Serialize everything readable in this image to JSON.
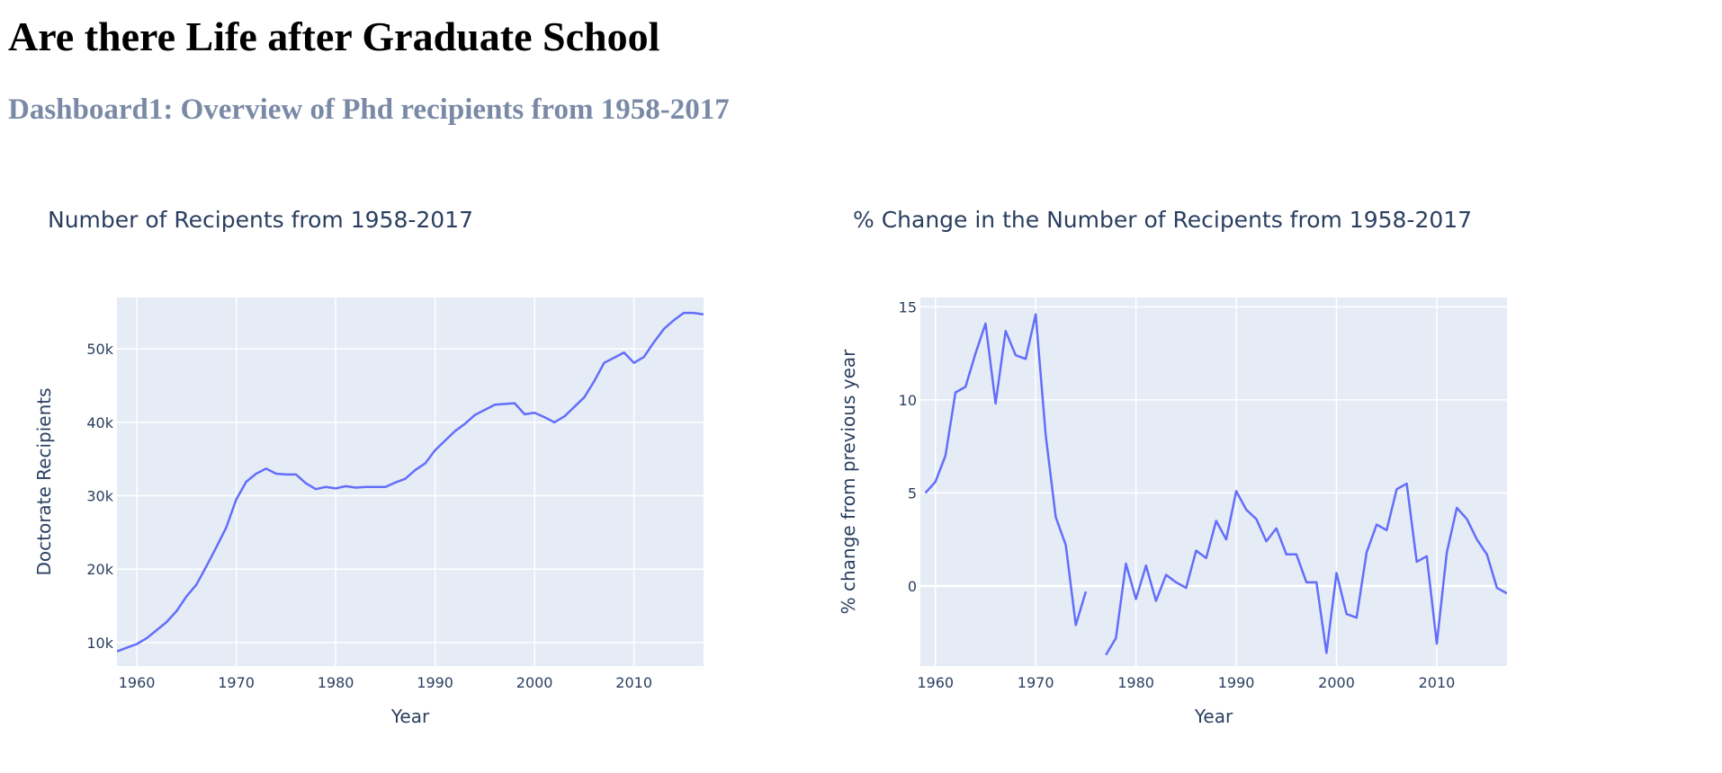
{
  "page": {
    "title": "Are there Life after Graduate School",
    "subtitle": "Dashboard1: Overview of Phd recipients from 1958-2017"
  },
  "colors": {
    "line": "#636efa",
    "plot_bg": "#e5ecf6",
    "grid": "#ffffff",
    "text": "#2a3f5f"
  },
  "chart_data": [
    {
      "type": "line",
      "title": "Number of Recipents from 1958-2017",
      "xlabel": "Year",
      "ylabel": "Doctorate Recipients",
      "xlim": [
        1958,
        2017
      ],
      "ylim": [
        6800,
        57000
      ],
      "xticks": [
        1960,
        1970,
        1980,
        1990,
        2000,
        2010
      ],
      "xtick_labels": [
        "1960",
        "1970",
        "1980",
        "1990",
        "2000",
        "2010"
      ],
      "yticks": [
        10000,
        20000,
        30000,
        40000,
        50000
      ],
      "ytick_labels": [
        "10k",
        "20k",
        "30k",
        "40k",
        "50k"
      ],
      "grid": true,
      "series": [
        {
          "x": [
            1958,
            1959,
            1960,
            1961,
            1962,
            1963,
            1964,
            1965,
            1966,
            1967,
            1968,
            1969,
            1970,
            1971,
            1972,
            1973,
            1974,
            1975,
            1976,
            1977,
            1978,
            1979,
            1980,
            1981,
            1982,
            1983,
            1984,
            1985,
            1986,
            1987,
            1988,
            1989,
            1990,
            1991,
            1992,
            1993,
            1994,
            1995,
            1996,
            1997,
            1998,
            1999,
            2000,
            2001,
            2002,
            2003,
            2004,
            2005,
            2006,
            2007,
            2008,
            2009,
            2010,
            2011,
            2012,
            2013,
            2014,
            2015,
            2016,
            2017
          ],
          "y": [
            8800,
            9300,
            9800,
            10600,
            11700,
            12800,
            14300,
            16300,
            17900,
            20400,
            23000,
            25700,
            29500,
            31900,
            33000,
            33700,
            33000,
            32900,
            32900,
            31700,
            30900,
            31200,
            31000,
            31300,
            31100,
            31200,
            31200,
            31200,
            31800,
            32300,
            33500,
            34400,
            36200,
            37500,
            38800,
            39800,
            41000,
            41700,
            42400,
            42500,
            42600,
            41100,
            41300,
            40700,
            40000,
            40800,
            42100,
            43400,
            45600,
            48100,
            48800,
            49500,
            48100,
            48900,
            50900,
            52700,
            53900,
            54900,
            54900,
            54700
          ]
        }
      ]
    },
    {
      "type": "line",
      "title": "% Change in the Number of Recipents from 1958-2017",
      "xlabel": "Year",
      "ylabel": "% change from previous year",
      "xlim": [
        1958.5,
        2017
      ],
      "ylim": [
        -4.3,
        15.5
      ],
      "xticks": [
        1960,
        1970,
        1980,
        1990,
        2000,
        2010
      ],
      "xtick_labels": [
        "1960",
        "1970",
        "1980",
        "1990",
        "2000",
        "2010"
      ],
      "yticks": [
        0,
        5,
        10,
        15
      ],
      "ytick_labels": [
        "0",
        "5",
        "10",
        "15"
      ],
      "grid": true,
      "series": [
        {
          "x": [
            1959,
            1960,
            1961,
            1962,
            1963,
            1964,
            1965,
            1966,
            1967,
            1968,
            1969,
            1970,
            1971,
            1972,
            1973,
            1974,
            1975,
            1976,
            1977,
            1978,
            1979,
            1980,
            1981,
            1982,
            1983,
            1984,
            1985,
            1986,
            1987,
            1988,
            1989,
            1990,
            1991,
            1992,
            1993,
            1994,
            1995,
            1996,
            1997,
            1998,
            1999,
            2000,
            2001,
            2002,
            2003,
            2004,
            2005,
            2006,
            2007,
            2008,
            2009,
            2010,
            2011,
            2012,
            2013,
            2014,
            2015,
            2016,
            2017
          ],
          "y": [
            5.0,
            5.6,
            7.0,
            10.4,
            10.7,
            12.5,
            14.1,
            9.8,
            13.7,
            12.4,
            12.2,
            14.6,
            8.1,
            3.7,
            2.2,
            -2.1,
            -0.3,
            null,
            -3.7,
            -2.8,
            1.2,
            -0.7,
            1.1,
            -0.8,
            0.6,
            0.2,
            -0.1,
            1.9,
            1.5,
            3.5,
            2.5,
            5.1,
            4.1,
            3.6,
            2.4,
            3.1,
            1.7,
            1.7,
            0.2,
            0.2,
            -3.6,
            0.7,
            -1.5,
            -1.7,
            1.8,
            3.3,
            3.0,
            5.2,
            5.5,
            1.3,
            1.6,
            -3.1,
            1.8,
            4.2,
            3.6,
            2.5,
            1.7,
            -0.1,
            -0.4
          ]
        }
      ]
    }
  ]
}
